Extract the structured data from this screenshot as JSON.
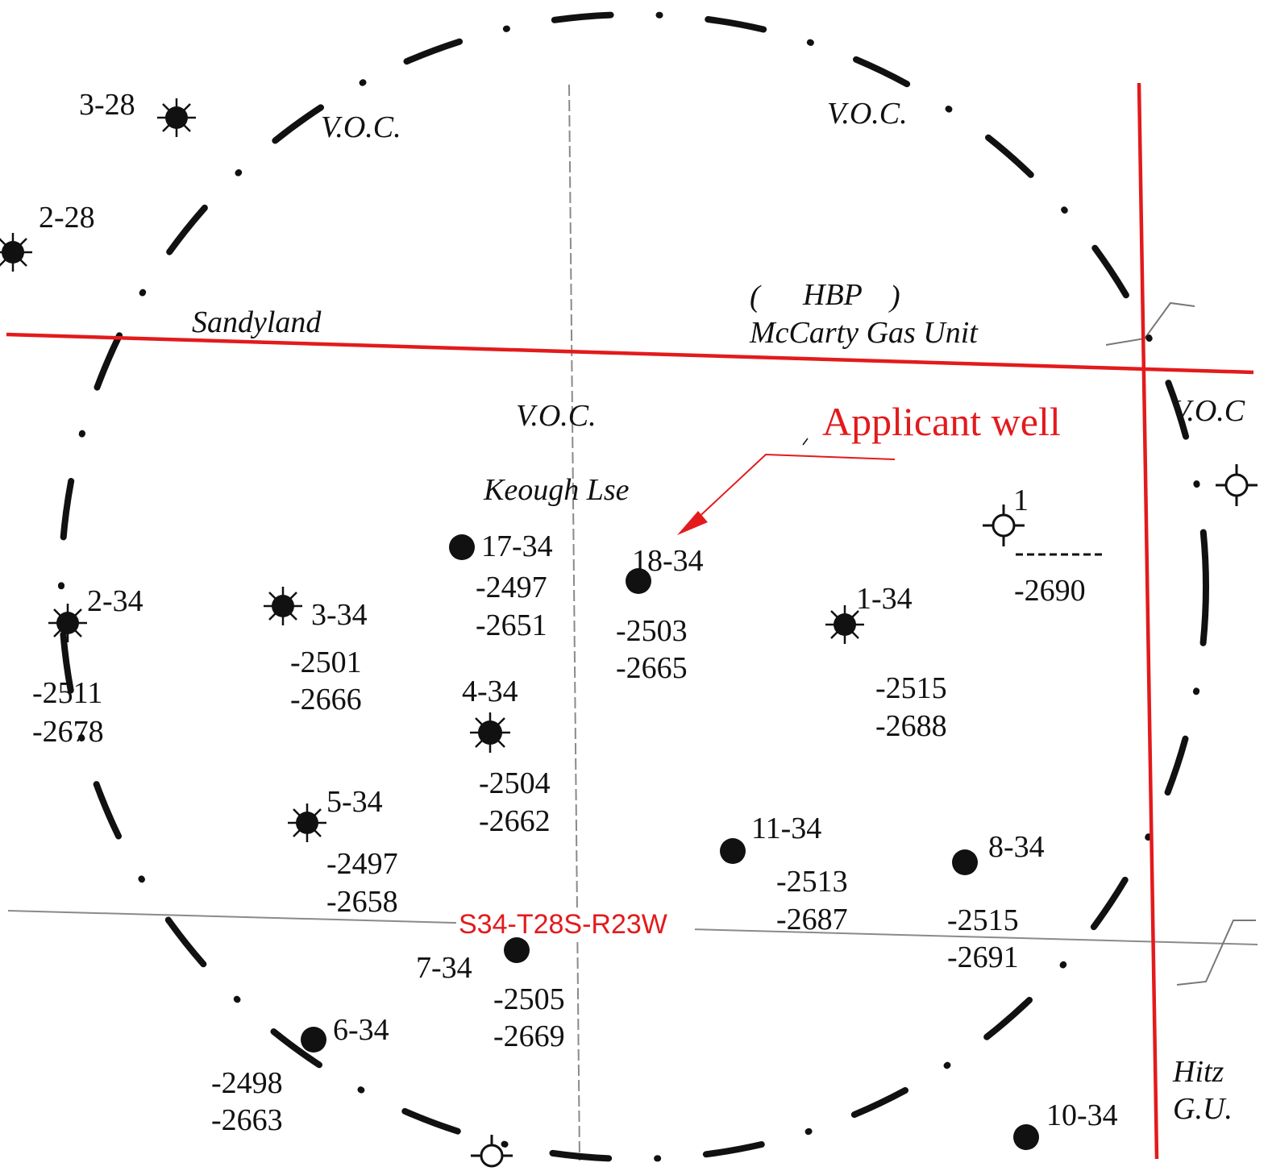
{
  "map": {
    "section_label": "S34-T28S-R23W",
    "callout": "Applicant well",
    "area_labels": {
      "voc_top_left": "V.O.C.",
      "voc_top_right": "V.O.C.",
      "voc_center": "V.O.C.",
      "voc_right": "V.O.C",
      "sandyland": "Sandyland",
      "hbp_open": "(",
      "hbp": "HBP",
      "hbp_close": ")",
      "mccarty": "McCarty Gas Unit",
      "keough": "Keough Lse",
      "hitz_1": "Hitz",
      "hitz_2": "G.U."
    },
    "wells": [
      {
        "id": "3-28",
        "symbol": "gas"
      },
      {
        "id": "2-28",
        "symbol": "gas"
      },
      {
        "id": "2-34",
        "symbol": "gas",
        "top": "-2511",
        "base": "-2678"
      },
      {
        "id": "3-34",
        "symbol": "gas",
        "top": "-2501",
        "base": "-2666"
      },
      {
        "id": "17-34",
        "symbol": "oil",
        "top": "-2497",
        "base": "-2651"
      },
      {
        "id": "18-34",
        "symbol": "oil",
        "top": "-2503",
        "base": "-2665"
      },
      {
        "id": "1-34",
        "symbol": "gas",
        "top": "-2515",
        "base": "-2688"
      },
      {
        "id": "1",
        "symbol": "location",
        "top": "-2690"
      },
      {
        "id": "4-34",
        "symbol": "gas",
        "top": "-2504",
        "base": "-2662"
      },
      {
        "id": "5-34",
        "symbol": "gas",
        "top": "-2497",
        "base": "-2658"
      },
      {
        "id": "11-34",
        "symbol": "oil",
        "top": "-2513",
        "base": "-2687"
      },
      {
        "id": "8-34",
        "symbol": "oil",
        "top": "-2515",
        "base": "-2691"
      },
      {
        "id": "7-34",
        "symbol": "oil",
        "top": "-2505",
        "base": "-2669"
      },
      {
        "id": "6-34",
        "symbol": "oil",
        "top": "-2498",
        "base": "-2663"
      },
      {
        "id": "10-34",
        "symbol": "oil"
      }
    ],
    "colors": {
      "boundary_red": "#e31a1c",
      "symbol_black": "#111111",
      "section_line_gray": "#8a8a8a"
    }
  }
}
